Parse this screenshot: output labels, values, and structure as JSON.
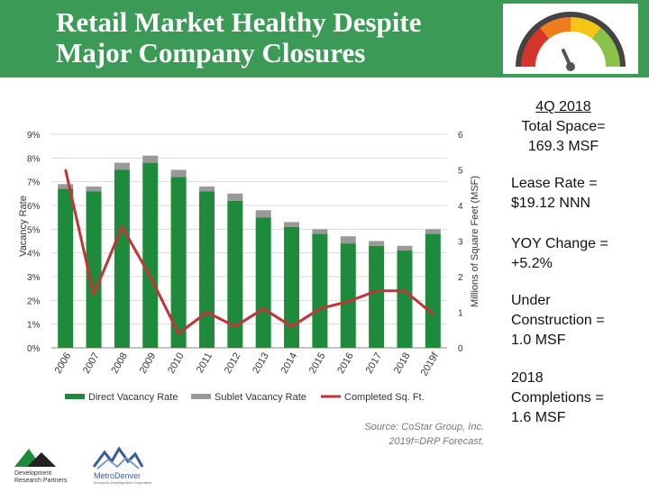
{
  "header": {
    "title_line1": "Retail Market Healthy Despite",
    "title_line2": "Major Company Closures",
    "gauge_icon": "gauge-icon",
    "colors": {
      "header_bg": "#3c9a57"
    }
  },
  "sidebar": {
    "head_line1": "4Q 2018",
    "head_line2": "Total Space=",
    "head_line3": "169.3 MSF",
    "lease_line1": "Lease Rate =",
    "lease_line2": "$19.12 NNN",
    "yoy_line1": "YOY Change =",
    "yoy_line2": "+5.2%",
    "uc_line1": "Under",
    "uc_line2": "Construction =",
    "uc_line3": "1.0 MSF",
    "comp_line1": "2018",
    "comp_line2": "Completions =",
    "comp_line3": "1.6 MSF"
  },
  "source": {
    "line1": "Source: CoStar Group, Inc.",
    "line2": "2019f=DRP Forecast."
  },
  "logos": {
    "drp_line1": "Development",
    "drp_line2": "Research Partners",
    "metro_name": "MetroDenver",
    "metro_sub": "Economic Development Corporation"
  },
  "chart_data": {
    "type": "bar",
    "categories": [
      "2006",
      "2007",
      "2008",
      "2009",
      "2010",
      "2011",
      "2012",
      "2013",
      "2014",
      "2015",
      "2016",
      "2017",
      "2018",
      "2019f"
    ],
    "series": [
      {
        "name": "Direct Vacancy Rate",
        "kind": "bar",
        "axis": "left",
        "color": "#1e8a3c",
        "values": [
          6.7,
          6.6,
          7.5,
          7.8,
          7.2,
          6.6,
          6.2,
          5.5,
          5.1,
          4.8,
          4.4,
          4.3,
          4.1,
          4.8
        ]
      },
      {
        "name": "Sublet Vacancy Rate",
        "kind": "bar-stacked",
        "axis": "left",
        "color": "#999999",
        "values": [
          0.2,
          0.2,
          0.3,
          0.3,
          0.3,
          0.2,
          0.3,
          0.3,
          0.2,
          0.2,
          0.3,
          0.2,
          0.2,
          0.2
        ]
      },
      {
        "name": "Completed Sq. Ft.",
        "kind": "line",
        "axis": "right",
        "color": "#c0343a",
        "values": [
          5.0,
          1.5,
          3.4,
          2.0,
          0.4,
          1.0,
          0.6,
          1.1,
          0.6,
          1.1,
          1.3,
          1.6,
          1.6,
          0.95
        ]
      }
    ],
    "ylabel": "Vacancy Rate",
    "y2label": "Millions of Square Feet (MSF)",
    "ylim": [
      0,
      9
    ],
    "y2lim": [
      0,
      6
    ],
    "yticks": [
      "0%",
      "1%",
      "2%",
      "3%",
      "4%",
      "5%",
      "6%",
      "7%",
      "8%",
      "9%"
    ],
    "y2ticks": [
      "0",
      "1",
      "2",
      "3",
      "4",
      "5",
      "6"
    ],
    "grid": true,
    "legend_position": "bottom"
  }
}
